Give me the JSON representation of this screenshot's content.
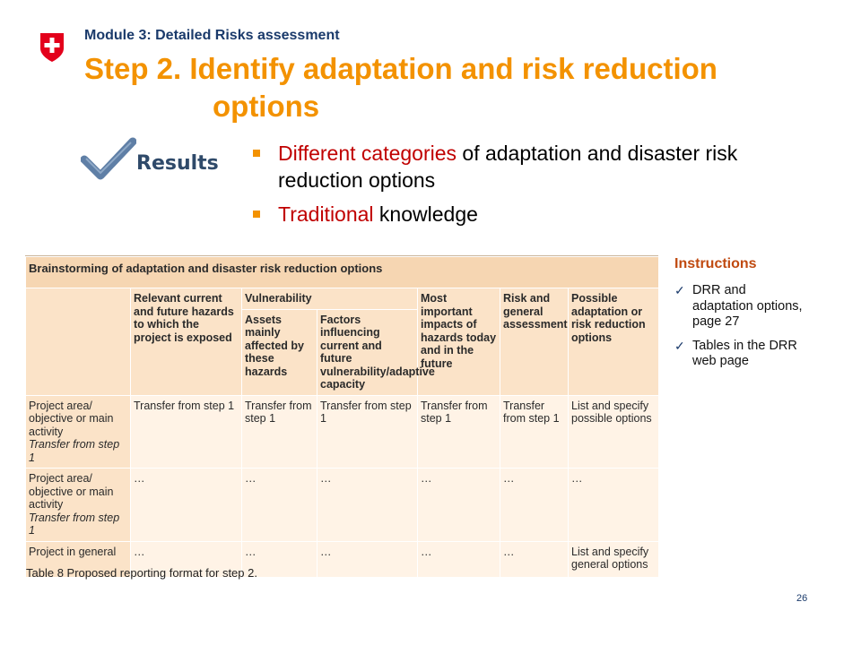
{
  "header": {
    "module": "Module 3: Detailed Risks assessment",
    "title_line1": "Step 2. Identify adaptation and risk reduction",
    "title_line2": "options"
  },
  "results_badge": {
    "label": "Results",
    "icon": "checkmark-icon"
  },
  "bullets": [
    {
      "highlight": "Different categories",
      "rest": " of adaptation and disaster risk reduction options"
    },
    {
      "highlight": "Traditional",
      "rest": " knowledge"
    }
  ],
  "table": {
    "title": "Brainstorming of adaptation and disaster risk reduction options",
    "headers": {
      "col1": "Relevant current and future hazards to which the project is exposed",
      "vulnerability": "Vulnerability",
      "col2": "Assets mainly affected by these hazards",
      "col3": "Factors influencing current and future vulnerability/adaptive capacity",
      "col4": "Most important impacts of hazards today and in the future",
      "col5": "Risk and general assessment",
      "col6": "Possible adaptation or risk reduction options"
    },
    "rows": [
      {
        "c0": "Project area/ objective or main activity",
        "c0_italic": "Transfer from step 1",
        "c1": "Transfer from step 1",
        "c2": "Transfer from step 1",
        "c3": "Transfer from step 1",
        "c4": "Transfer from step 1",
        "c5": "Transfer from step 1",
        "c6": "List and specify possible options"
      },
      {
        "c0": "Project area/ objective or main activity",
        "c0_italic": "Transfer from step 1",
        "c1": "…",
        "c2": "…",
        "c3": "…",
        "c4": "…",
        "c5": "…",
        "c6": "…"
      },
      {
        "c0": "Project in general",
        "c0_italic": "",
        "c1": "…",
        "c2": "…",
        "c3": "…",
        "c4": "…",
        "c5": "…",
        "c6": "List and specify general options"
      }
    ],
    "caption": "Table 8 Proposed reporting format for step 2."
  },
  "instructions": {
    "title": "Instructions",
    "items": [
      "DRR and adaptation options, page 27",
      "Tables in the DRR web page"
    ]
  },
  "page_number": "26",
  "colors": {
    "accent": "#f39200",
    "highlight": "#c00000",
    "navy": "#1a3a6b",
    "swiss_red": "#e3001b"
  }
}
